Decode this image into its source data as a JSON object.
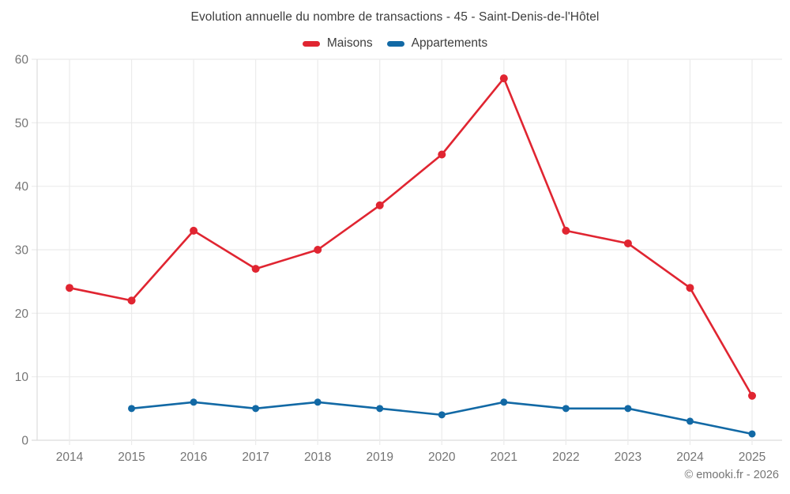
{
  "chart_data": {
    "type": "line",
    "title": "Evolution annuelle du nombre de transactions - 45 - Saint-Denis-de-l'Hôtel",
    "categories": [
      "2014",
      "2015",
      "2016",
      "2017",
      "2018",
      "2019",
      "2020",
      "2021",
      "2022",
      "2023",
      "2024",
      "2025"
    ],
    "series": [
      {
        "name": "Maisons",
        "color": "#e02531",
        "values": [
          24,
          22,
          33,
          27,
          30,
          37,
          45,
          57,
          33,
          31,
          24,
          7
        ]
      },
      {
        "name": "Appartements",
        "color": "#1269a5",
        "values": [
          null,
          5,
          6,
          5,
          6,
          5,
          4,
          6,
          5,
          5,
          3,
          1
        ]
      }
    ],
    "ylim": [
      0,
      60
    ],
    "ytick_step": 10,
    "yticks": [
      0,
      10,
      20,
      30,
      40,
      50,
      60
    ],
    "grid": true,
    "legend_position": "top"
  },
  "footer": {
    "copyright": "© emooki.fr - 2026"
  },
  "colors": {
    "grid": "#ebebeb",
    "axis": "#dcdcdc",
    "tick_text": "#757575",
    "title_text": "#3d3d3d"
  }
}
